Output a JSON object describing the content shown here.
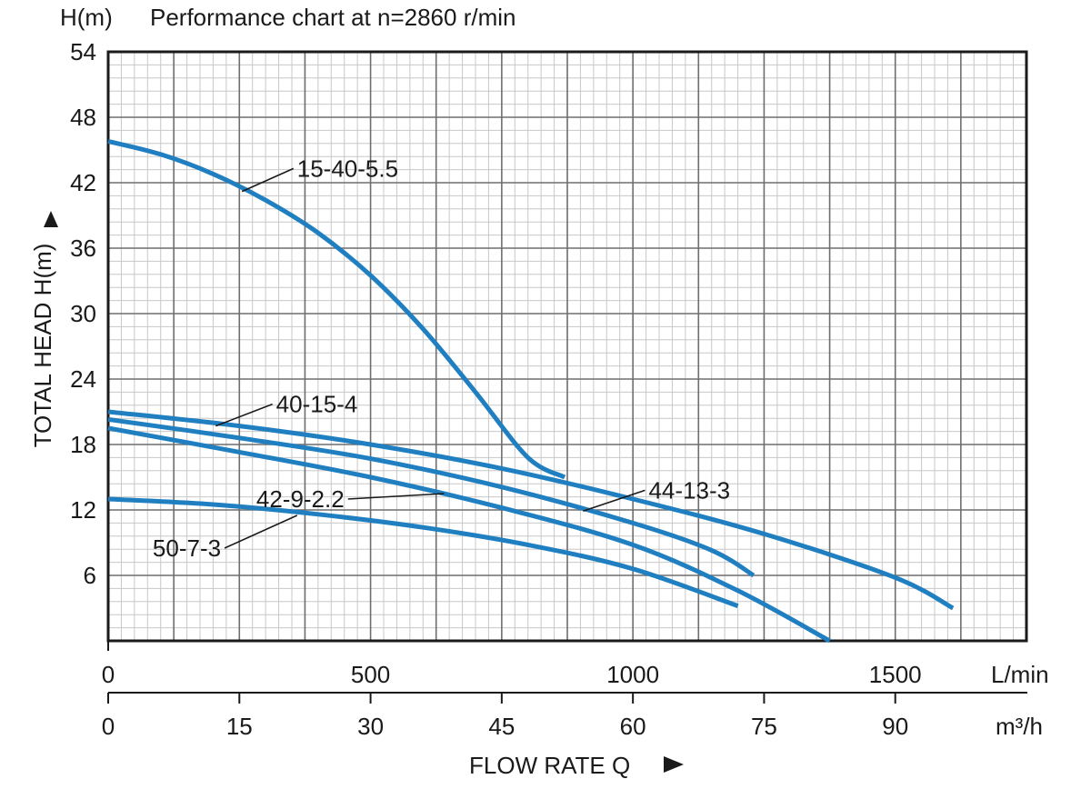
{
  "chart_data": {
    "type": "line",
    "title": "Performance chart at n=2860 r/min",
    "y_unit_label": "H(m)",
    "ylabel": "TOTAL HEAD H(m)",
    "xlabel": "FLOW RATE Q",
    "x_unit_lmin": "L/min",
    "x_unit_m3h": "m³/h",
    "xlim": [
      0,
      1750
    ],
    "ylim": [
      0,
      54
    ],
    "x_ticks_lmin": [
      0,
      500,
      1000,
      1500
    ],
    "x_ticks_m3h": [
      0,
      15,
      30,
      45,
      60,
      75,
      90
    ],
    "y_ticks": [
      6,
      12,
      18,
      24,
      30,
      36,
      42,
      48,
      54
    ],
    "grid": true,
    "line_color": "#1f7fc0",
    "series": [
      {
        "name": "15-40-5.5",
        "points": [
          [
            0,
            45.8
          ],
          [
            100,
            44.6
          ],
          [
            200,
            42.8
          ],
          [
            300,
            40.4
          ],
          [
            400,
            37.4
          ],
          [
            500,
            33.5
          ],
          [
            600,
            28.6
          ],
          [
            700,
            22.8
          ],
          [
            800,
            16.8
          ],
          [
            870,
            15
          ]
        ]
      },
      {
        "name": "40-15-4",
        "points": [
          [
            0,
            21
          ],
          [
            250,
            19.7
          ],
          [
            500,
            18
          ],
          [
            750,
            15.8
          ],
          [
            1000,
            13
          ],
          [
            1250,
            9.8
          ],
          [
            1500,
            5.8
          ],
          [
            1610,
            3
          ]
        ]
      },
      {
        "name": "44-13-3",
        "points": [
          [
            0,
            20.3
          ],
          [
            250,
            18.6
          ],
          [
            500,
            16.7
          ],
          [
            750,
            14.1
          ],
          [
            1000,
            10.8
          ],
          [
            1150,
            8.3
          ],
          [
            1230,
            6
          ]
        ]
      },
      {
        "name": "42-9-2.2",
        "points": [
          [
            0,
            19.5
          ],
          [
            250,
            17.3
          ],
          [
            500,
            15
          ],
          [
            750,
            12.2
          ],
          [
            1000,
            8.8
          ],
          [
            1200,
            4.6
          ],
          [
            1375,
            0
          ]
        ]
      },
      {
        "name": "50-7-3",
        "points": [
          [
            0,
            13
          ],
          [
            200,
            12.5
          ],
          [
            400,
            11.6
          ],
          [
            600,
            10.4
          ],
          [
            800,
            8.8
          ],
          [
            1000,
            6.6
          ],
          [
            1200,
            3.2
          ]
        ]
      }
    ],
    "annotations": [
      {
        "text": "15-40-5.5",
        "at": [
          255,
          41.2
        ],
        "label": [
          360,
          43.3
        ]
      },
      {
        "text": "40-15-4",
        "at": [
          205,
          19.7
        ],
        "label": [
          320,
          21.7
        ]
      },
      {
        "text": "44-13-3",
        "at": [
          905,
          11.9
        ],
        "label": [
          1030,
          13.8
        ]
      },
      {
        "text": "42-9-2.2",
        "at": [
          640,
          13.5
        ],
        "label": [
          450,
          13.0
        ]
      },
      {
        "text": "50-7-3",
        "at": [
          360,
          11.5
        ],
        "label": [
          215,
          8.5
        ]
      }
    ]
  }
}
